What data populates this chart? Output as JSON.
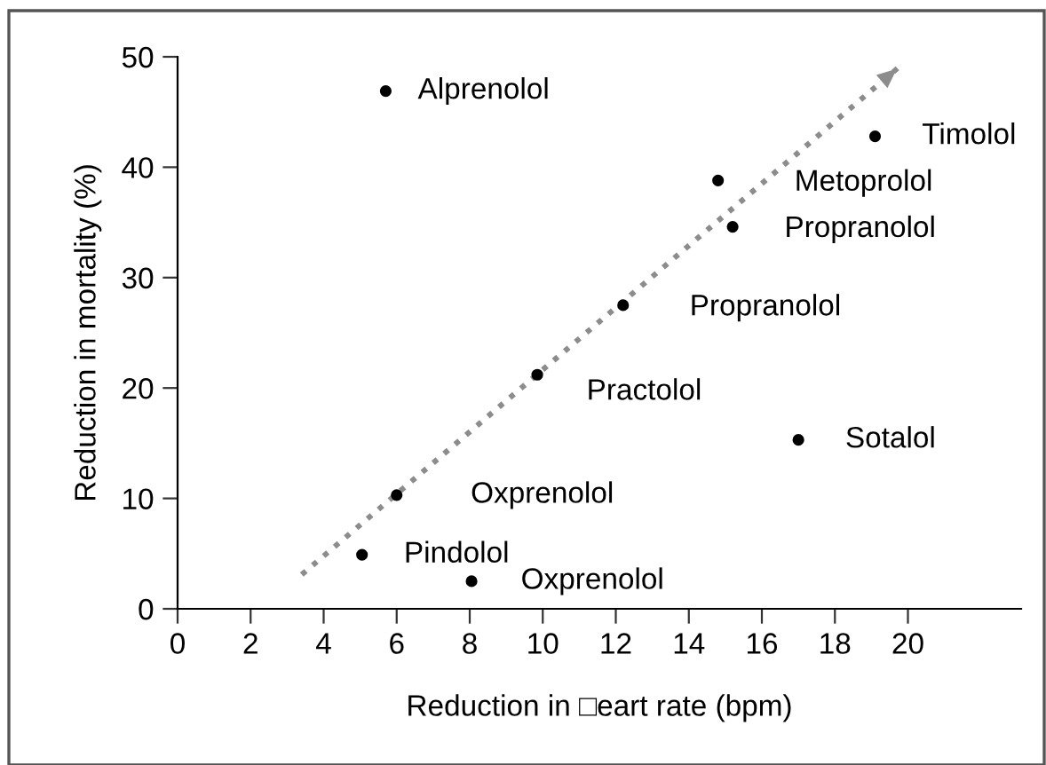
{
  "chart_data": {
    "type": "scatter",
    "xlabel": "Reduction in □eart rate (bpm)",
    "ylabel": "Reduction in mortality (%)",
    "xlim": [
      0,
      23.1
    ],
    "ylim": [
      0,
      50
    ],
    "xticks": [
      0,
      2,
      4,
      6,
      8,
      10,
      12,
      14,
      16,
      18,
      20
    ],
    "yticks": [
      0,
      10,
      20,
      30,
      40,
      50
    ],
    "grid": false,
    "series": [
      {
        "marker": "circle",
        "color": "#000000",
        "x": [
          5.7,
          19.1,
          14.8,
          15.2,
          12.2,
          9.85,
          17.0,
          6.0,
          5.05,
          8.05
        ],
        "values": [
          46.9,
          42.8,
          38.8,
          34.6,
          27.5,
          21.2,
          15.3,
          10.3,
          4.9,
          2.5
        ]
      },
      {
        "type": "line",
        "color": "#8c8c8c",
        "line_style": "dotted",
        "x": [
          3.4,
          19.8
        ],
        "values": [
          3.1,
          49.2
        ]
      }
    ],
    "annotations": [
      {
        "text": "Alprenolol",
        "x": 5.7,
        "y": 46.9
      },
      {
        "text": "Timolol",
        "x": 19.1,
        "y": 42.8
      },
      {
        "text": "Metoprolol",
        "x": 14.8,
        "y": 38.8
      },
      {
        "text": "Propranolol",
        "x": 15.2,
        "y": 34.6
      },
      {
        "text": "Propranolol",
        "x": 12.2,
        "y": 27.5
      },
      {
        "text": "Practolol",
        "x": 9.85,
        "y": 21.2
      },
      {
        "text": "Sotalol",
        "x": 17.0,
        "y": 15.3
      },
      {
        "text": "Oxprenolol",
        "x": 6.0,
        "y": 10.3
      },
      {
        "text": "Pindolol",
        "x": 5.05,
        "y": 4.9
      },
      {
        "text": "Oxprenolol",
        "x": 8.05,
        "y": 2.5
      }
    ]
  }
}
